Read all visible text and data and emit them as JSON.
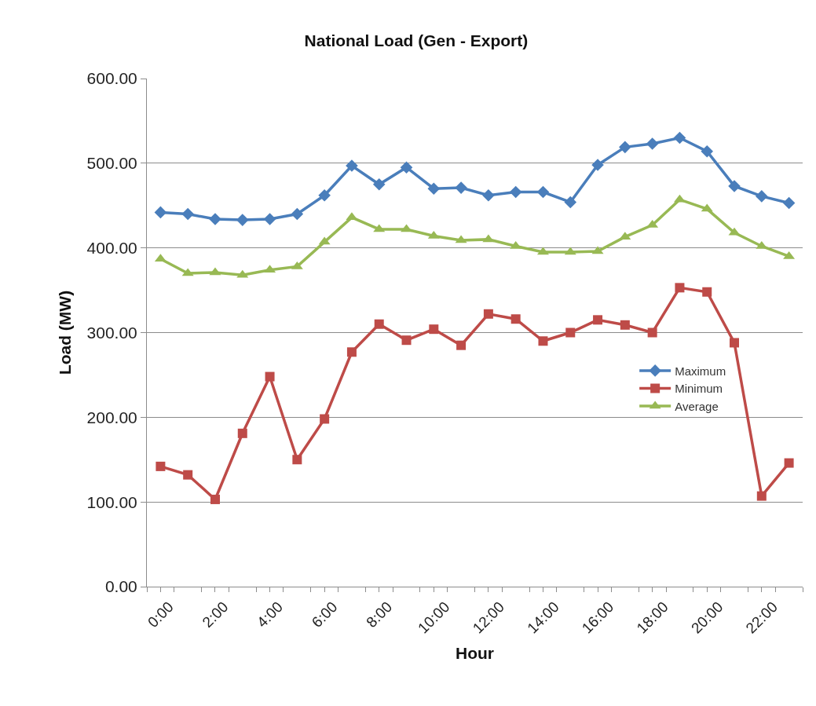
{
  "chart_data": {
    "type": "line",
    "title": "National Load (Gen - Export)",
    "xlabel": "Hour",
    "ylabel": "Load (MW)",
    "x": [
      0,
      1,
      2,
      3,
      4,
      5,
      6,
      7,
      8,
      9,
      10,
      11,
      12,
      13,
      14,
      15,
      16,
      17,
      18,
      19,
      20,
      21,
      22,
      23
    ],
    "xlim": [
      -0.5,
      23.5
    ],
    "xticks": [
      {
        "value": 0,
        "label": "0:00"
      },
      {
        "value": 2,
        "label": "2:00"
      },
      {
        "value": 4,
        "label": "4:00"
      },
      {
        "value": 6,
        "label": "6:00"
      },
      {
        "value": 8,
        "label": "8:00"
      },
      {
        "value": 10,
        "label": "10:00"
      },
      {
        "value": 12,
        "label": "12:00"
      },
      {
        "value": 14,
        "label": "14:00"
      },
      {
        "value": 16,
        "label": "16:00"
      },
      {
        "value": 18,
        "label": "18:00"
      },
      {
        "value": 20,
        "label": "20:00"
      },
      {
        "value": 22,
        "label": "22:00"
      },
      {
        "value": -0.5,
        "label": null
      },
      {
        "value": 0.5,
        "label": null
      },
      {
        "value": 1.5,
        "label": null
      },
      {
        "value": 2.5,
        "label": null
      },
      {
        "value": 3.5,
        "label": null
      },
      {
        "value": 4.5,
        "label": null
      },
      {
        "value": 5.5,
        "label": null
      },
      {
        "value": 6.5,
        "label": null
      },
      {
        "value": 7.5,
        "label": null
      },
      {
        "value": 8.5,
        "label": null
      },
      {
        "value": 9.5,
        "label": null
      },
      {
        "value": 10.5,
        "label": null
      },
      {
        "value": 11.5,
        "label": null
      },
      {
        "value": 12.5,
        "label": null
      },
      {
        "value": 13.5,
        "label": null
      },
      {
        "value": 14.5,
        "label": null
      },
      {
        "value": 15.5,
        "label": null
      },
      {
        "value": 16.5,
        "label": null
      },
      {
        "value": 17.5,
        "label": null
      },
      {
        "value": 18.5,
        "label": null
      },
      {
        "value": 19.5,
        "label": null
      },
      {
        "value": 20.5,
        "label": null
      },
      {
        "value": 21.5,
        "label": null
      },
      {
        "value": 22.5,
        "label": null
      },
      {
        "value": 23.5,
        "label": null
      }
    ],
    "ylim": [
      0,
      600
    ],
    "yticks": [
      {
        "value": 0,
        "label": "0.00"
      },
      {
        "value": 100,
        "label": "100.00"
      },
      {
        "value": 200,
        "label": "200.00"
      },
      {
        "value": 300,
        "label": "300.00"
      },
      {
        "value": 400,
        "label": "400.00"
      },
      {
        "value": 500,
        "label": "500.00"
      },
      {
        "value": 600,
        "label": "600.00"
      }
    ],
    "grid": "y",
    "legend": "right",
    "series": [
      {
        "name": "Maximum",
        "color": "#4a7ebb",
        "marker": "diamond",
        "values": [
          442,
          440,
          434,
          433,
          434,
          440,
          462,
          497,
          475,
          495,
          470,
          471,
          462,
          466,
          466,
          454,
          498,
          519,
          523,
          530,
          514,
          473,
          461,
          453
        ]
      },
      {
        "name": "Minimum",
        "color": "#be4b48",
        "marker": "square",
        "values": [
          142,
          132,
          103,
          181,
          248,
          150,
          198,
          277,
          310,
          291,
          304,
          285,
          322,
          316,
          290,
          300,
          315,
          309,
          300,
          353,
          348,
          288,
          107,
          146
        ]
      },
      {
        "name": "Average",
        "color": "#98b954",
        "marker": "triangle",
        "values": [
          387,
          370,
          371,
          368,
          374,
          378,
          407,
          436,
          422,
          422,
          414,
          409,
          410,
          402,
          395,
          395,
          396,
          413,
          427,
          457,
          446,
          418,
          402,
          390
        ]
      }
    ]
  }
}
